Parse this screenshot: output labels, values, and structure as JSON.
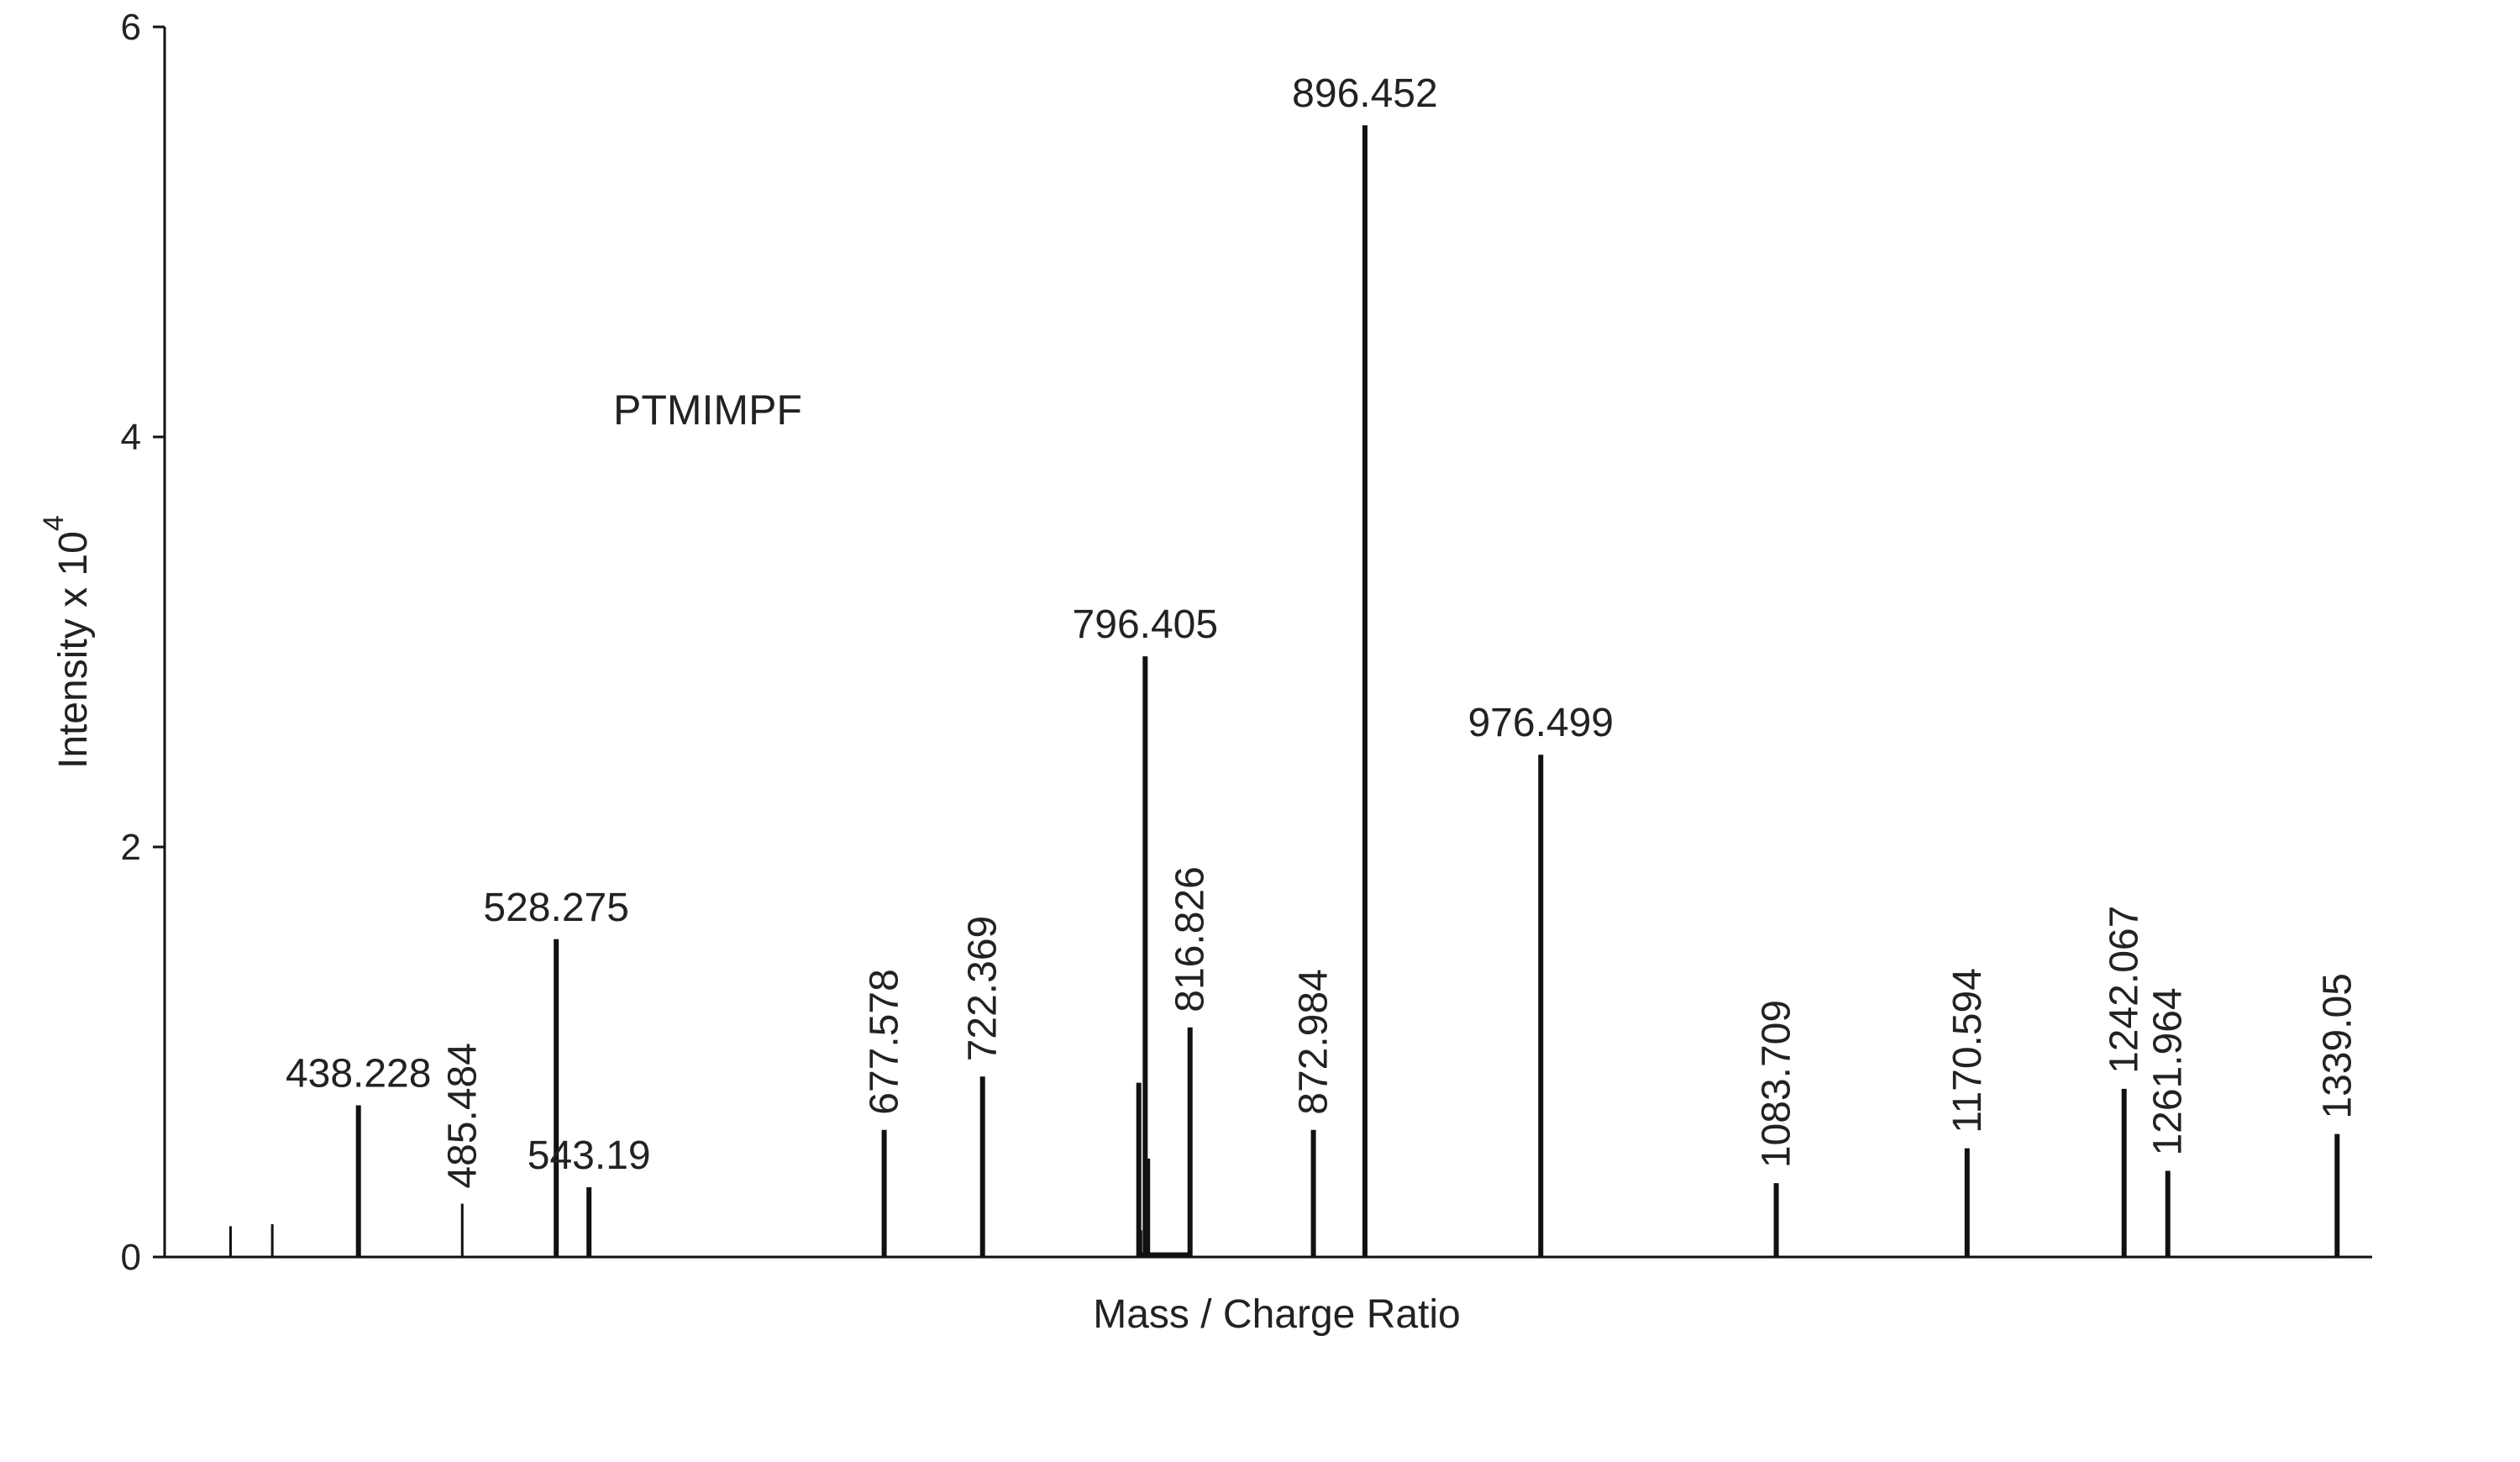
{
  "chart_data": {
    "type": "bar",
    "xlabel": "Mass / Charge Ratio",
    "ylabel_main": "Intensity x 10",
    "ylabel_exponent": "4",
    "annotation": "PTMIMPF",
    "ylim": [
      0,
      6
    ],
    "xlim": [
      350,
      1355
    ],
    "y_ticks": [
      0,
      2,
      4,
      6
    ],
    "grid": false,
    "series": [
      {
        "x": 380,
        "y": 0.15
      },
      {
        "x": 399,
        "y": 0.16
      },
      {
        "x": 438.228,
        "y": 0.74,
        "label": "438.228"
      },
      {
        "x": 485.484,
        "y": 0.26,
        "label": "485.484",
        "label_vertical": true
      },
      {
        "x": 528.275,
        "y": 1.55,
        "label": "528.275"
      },
      {
        "x": 543.19,
        "y": 0.34,
        "label": "543.19"
      },
      {
        "x": 677.578,
        "y": 0.62,
        "label": "677.578",
        "label_vertical": true
      },
      {
        "x": 722.369,
        "y": 0.88,
        "label": "722.369",
        "label_vertical": true
      },
      {
        "x": 793.5,
        "y": 0.85
      },
      {
        "x": 794.5,
        "y": 0.13
      },
      {
        "x": 796.405,
        "y": 2.93,
        "label": "796.405"
      },
      {
        "x": 797.5,
        "y": 0.48
      },
      {
        "x": 816.826,
        "y": 1.12,
        "label": "816.826",
        "label_vertical": true
      },
      {
        "x": 872.984,
        "y": 0.62,
        "label": "872.984",
        "label_vertical": true
      },
      {
        "x": 896.452,
        "y": 5.52,
        "label": "896.452"
      },
      {
        "x": 976.499,
        "y": 2.45,
        "label": "976.499"
      },
      {
        "x": 1083.709,
        "y": 0.36,
        "label": "1083.709",
        "label_vertical": true
      },
      {
        "x": 1170.594,
        "y": 0.53,
        "label": "1170.594",
        "label_vertical": true
      },
      {
        "x": 1242.067,
        "y": 0.82,
        "label": "1242.067",
        "label_vertical": true
      },
      {
        "x": 1261.964,
        "y": 0.42,
        "label": "1261.964",
        "label_vertical": true
      },
      {
        "x": 1339.05,
        "y": 0.6,
        "label": "1339.05",
        "label_vertical": true
      }
    ]
  }
}
